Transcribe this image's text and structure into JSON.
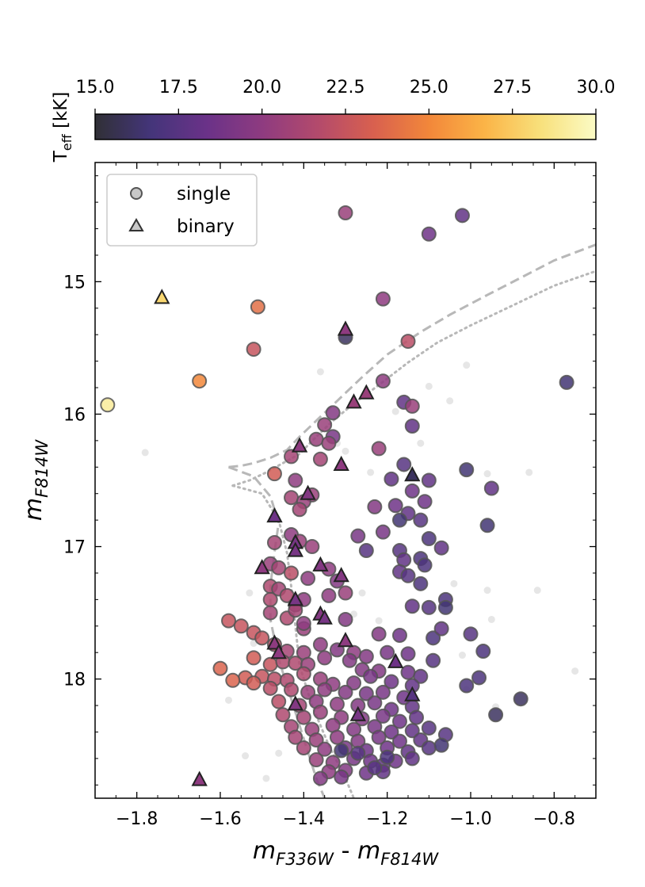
{
  "chart_data": {
    "type": "scatter",
    "xlabel": {
      "base1": "m",
      "sub1": "F336W",
      "sep": " - ",
      "base2": "m",
      "sub2": "F814W"
    },
    "ylabel": {
      "base": "m",
      "sub": "F814W"
    },
    "xlim": [
      -1.9,
      -0.7
    ],
    "ylim": [
      18.9,
      14.1
    ],
    "y_inverted": true,
    "x_ticks": [
      -1.8,
      -1.6,
      -1.4,
      -1.2,
      -1.0,
      -0.8
    ],
    "x_tick_labels": [
      "−1.8",
      "−1.6",
      "−1.4",
      "−1.2",
      "−1.0",
      "−0.8"
    ],
    "y_ticks": [
      15,
      16,
      17,
      18
    ],
    "y_tick_labels": [
      "15",
      "16",
      "17",
      "18"
    ],
    "colorbar": {
      "label": {
        "base": "T",
        "sub": "eff",
        "unit": " [kK]"
      },
      "range": [
        15.0,
        30.0
      ],
      "ticks": [
        15.0,
        17.5,
        20.0,
        22.5,
        25.0,
        27.5,
        30.0
      ],
      "tick_labels": [
        "15.0",
        "17.5",
        "20.0",
        "22.5",
        "25.0",
        "27.5",
        "30.0"
      ],
      "colormap": "inferno-like",
      "stops": [
        "#303036",
        "#44357a",
        "#6a3288",
        "#8e3b80",
        "#b34a6c",
        "#d8604f",
        "#f2873a",
        "#fbb447",
        "#f8e07b",
        "#fbfbc5"
      ]
    },
    "legend": {
      "position": "top-left",
      "entries": [
        {
          "label": "single",
          "marker": "circle"
        },
        {
          "label": "binary",
          "marker": "triangle"
        }
      ]
    },
    "isochrone_color": "#b8b8b8",
    "isochrone_dashed": [
      [
        -1.58,
        16.4
      ],
      [
        -1.55,
        16.39
      ],
      [
        -1.52,
        16.37
      ],
      [
        -1.48,
        16.33
      ],
      [
        -1.44,
        16.27
      ],
      [
        -1.41,
        16.17
      ],
      [
        -1.37,
        16.05
      ],
      [
        -1.32,
        15.9
      ],
      [
        -1.26,
        15.72
      ],
      [
        -1.2,
        15.55
      ],
      [
        -1.12,
        15.38
      ],
      [
        -1.05,
        15.25
      ],
      [
        -0.96,
        15.1
      ],
      [
        -0.88,
        14.97
      ],
      [
        -0.8,
        14.84
      ],
      [
        -0.7,
        14.72
      ]
    ],
    "isochrone_dotted": [
      [
        -1.57,
        16.54
      ],
      [
        -1.53,
        16.5
      ],
      [
        -1.49,
        16.44
      ],
      [
        -1.45,
        16.37
      ],
      [
        -1.41,
        16.3
      ],
      [
        -1.37,
        16.17
      ],
      [
        -1.33,
        16.05
      ],
      [
        -1.28,
        15.92
      ],
      [
        -1.22,
        15.78
      ],
      [
        -1.15,
        15.61
      ],
      [
        -1.08,
        15.46
      ],
      [
        -1.0,
        15.33
      ],
      [
        -0.9,
        15.18
      ],
      [
        -0.8,
        15.03
      ],
      [
        -0.7,
        14.92
      ]
    ],
    "zams_dashed": [
      [
        -1.58,
        16.4
      ],
      [
        -1.52,
        16.47
      ],
      [
        -1.48,
        16.62
      ],
      [
        -1.46,
        16.82
      ],
      [
        -1.47,
        17.04
      ],
      [
        -1.48,
        17.3
      ],
      [
        -1.48,
        17.55
      ],
      [
        -1.46,
        17.85
      ],
      [
        -1.43,
        18.15
      ],
      [
        -1.4,
        18.45
      ],
      [
        -1.37,
        18.75
      ],
      [
        -1.35,
        18.9
      ]
    ],
    "zams_dotted": [
      [
        -1.57,
        16.54
      ],
      [
        -1.5,
        16.6
      ],
      [
        -1.46,
        16.8
      ],
      [
        -1.44,
        17.05
      ],
      [
        -1.43,
        17.3
      ],
      [
        -1.42,
        17.6
      ],
      [
        -1.41,
        17.9
      ],
      [
        -1.38,
        18.2
      ],
      [
        -1.34,
        18.5
      ],
      [
        -1.3,
        18.75
      ],
      [
        -1.28,
        18.9
      ]
    ],
    "background_points": [
      [
        -1.78,
        16.29
      ],
      [
        -1.36,
        15.68
      ],
      [
        -1.32,
        16.22
      ],
      [
        -1.3,
        16.28
      ],
      [
        -1.24,
        16.44
      ],
      [
        -1.18,
        15.98
      ],
      [
        -1.1,
        15.79
      ],
      [
        -1.12,
        16.22
      ],
      [
        -1.05,
        15.9
      ],
      [
        -1.01,
        15.63
      ],
      [
        -0.96,
        16.45
      ],
      [
        -0.86,
        16.44
      ],
      [
        -0.84,
        17.33
      ],
      [
        -0.96,
        17.33
      ],
      [
        -1.04,
        17.28
      ],
      [
        -0.95,
        17.55
      ],
      [
        -1.26,
        17.35
      ],
      [
        -1.28,
        17.51
      ],
      [
        -1.28,
        17.84
      ],
      [
        -1.32,
        17.76
      ],
      [
        -1.22,
        17.56
      ],
      [
        -1.53,
        17.35
      ],
      [
        -1.52,
        17.73
      ],
      [
        -1.58,
        18.16
      ],
      [
        -1.54,
        18.58
      ],
      [
        -1.46,
        18.56
      ],
      [
        -1.49,
        18.75
      ],
      [
        -1.2,
        18.05
      ],
      [
        -1.08,
        18.52
      ],
      [
        -0.94,
        18.21
      ],
      [
        -0.75,
        17.94
      ],
      [
        -1.02,
        17.82
      ],
      [
        -1.01,
        18.08
      ]
    ],
    "single": [
      [
        -1.3,
        14.48,
        20.5
      ],
      [
        -1.02,
        14.5,
        18.0
      ],
      [
        -1.1,
        14.64,
        18.5
      ],
      [
        -1.21,
        15.13,
        20.0
      ],
      [
        -1.51,
        15.19,
        24.0
      ],
      [
        -1.52,
        15.51,
        22.5
      ],
      [
        -1.3,
        15.42,
        16.0
      ],
      [
        -1.15,
        15.45,
        22.0
      ],
      [
        -1.65,
        15.75,
        25.0
      ],
      [
        -1.87,
        15.93,
        29.0
      ],
      [
        -1.21,
        15.75,
        20.0
      ],
      [
        -0.77,
        15.76,
        16.5
      ],
      [
        -1.16,
        15.91,
        18.0
      ],
      [
        -1.14,
        15.94,
        20.5
      ],
      [
        -1.33,
        15.99,
        19.5
      ],
      [
        -1.35,
        16.08,
        20.5
      ],
      [
        -1.33,
        16.17,
        19.0
      ],
      [
        -1.14,
        16.09,
        18.0
      ],
      [
        -1.37,
        16.19,
        20.5
      ],
      [
        -1.34,
        16.22,
        20.5
      ],
      [
        -1.22,
        16.26,
        20.5
      ],
      [
        -1.01,
        16.42,
        16.5
      ],
      [
        -1.43,
        16.32,
        21.0
      ],
      [
        -1.36,
        16.34,
        21.0
      ],
      [
        -1.47,
        16.45,
        23.0
      ],
      [
        -1.42,
        16.5,
        20.0
      ],
      [
        -1.19,
        16.49,
        18.0
      ],
      [
        -1.16,
        16.38,
        17.5
      ],
      [
        -1.1,
        16.5,
        18.0
      ],
      [
        -0.95,
        16.56,
        18.0
      ],
      [
        -1.43,
        16.63,
        21.0
      ],
      [
        -1.38,
        16.61,
        20.5
      ],
      [
        -1.4,
        16.66,
        20.5
      ],
      [
        -1.41,
        16.72,
        21.0
      ],
      [
        -1.23,
        16.7,
        19.5
      ],
      [
        -1.14,
        16.58,
        18.5
      ],
      [
        -1.11,
        16.66,
        18.5
      ],
      [
        -1.18,
        16.69,
        18.5
      ],
      [
        -1.15,
        16.75,
        18.0
      ],
      [
        -1.12,
        16.8,
        17.5
      ],
      [
        -1.17,
        16.8,
        16.5
      ],
      [
        -0.96,
        16.84,
        16.5
      ],
      [
        -1.43,
        16.91,
        20.0
      ],
      [
        -1.41,
        16.96,
        20.5
      ],
      [
        -1.47,
        16.97,
        21.0
      ],
      [
        -1.38,
        17.0,
        20.5
      ],
      [
        -1.27,
        16.92,
        19.0
      ],
      [
        -1.21,
        16.89,
        19.0
      ],
      [
        -1.25,
        17.03,
        17.5
      ],
      [
        -1.1,
        16.94,
        17.0
      ],
      [
        -1.07,
        17.01,
        18.0
      ],
      [
        -1.17,
        17.03,
        17.5
      ],
      [
        -1.12,
        17.09,
        17.0
      ],
      [
        -1.16,
        17.1,
        18.0
      ],
      [
        -1.48,
        17.13,
        20.5
      ],
      [
        -1.46,
        17.16,
        21.0
      ],
      [
        -1.43,
        17.2,
        22.0
      ],
      [
        -1.39,
        17.24,
        20.0
      ],
      [
        -1.34,
        17.17,
        20.0
      ],
      [
        -1.32,
        17.26,
        19.5
      ],
      [
        -1.17,
        17.19,
        18.0
      ],
      [
        -1.11,
        17.14,
        17.0
      ],
      [
        -1.15,
        17.22,
        17.5
      ],
      [
        -1.12,
        17.28,
        17.0
      ],
      [
        -1.48,
        17.3,
        21.5
      ],
      [
        -1.46,
        17.32,
        21.0
      ],
      [
        -1.44,
        17.37,
        21.5
      ],
      [
        -1.48,
        17.4,
        21.5
      ],
      [
        -1.42,
        17.44,
        20.5
      ],
      [
        -1.4,
        17.4,
        20.0
      ],
      [
        -1.34,
        17.37,
        20.0
      ],
      [
        -1.3,
        17.35,
        20.5
      ],
      [
        -1.06,
        17.4,
        17.0
      ],
      [
        -1.06,
        17.46,
        16.5
      ],
      [
        -1.1,
        17.46,
        17.5
      ],
      [
        -1.14,
        17.45,
        18.0
      ],
      [
        -1.58,
        17.56,
        22.5
      ],
      [
        -1.48,
        17.5,
        21.0
      ],
      [
        -1.44,
        17.54,
        21.5
      ],
      [
        -1.42,
        17.48,
        21.0
      ],
      [
        -1.4,
        17.62,
        20.5
      ],
      [
        -1.4,
        17.58,
        20.0
      ],
      [
        -1.3,
        17.55,
        19.5
      ],
      [
        -1.22,
        17.66,
        19.5
      ],
      [
        -1.17,
        17.67,
        18.5
      ],
      [
        -1.09,
        17.69,
        17.0
      ],
      [
        -1.07,
        17.62,
        18.0
      ],
      [
        -1.0,
        17.66,
        17.5
      ],
      [
        -1.55,
        17.6,
        22.5
      ],
      [
        -1.52,
        17.65,
        22.5
      ],
      [
        -1.5,
        17.69,
        22.5
      ],
      [
        -1.47,
        17.74,
        22.0
      ],
      [
        -1.44,
        17.79,
        21.0
      ],
      [
        -1.4,
        17.8,
        20.5
      ],
      [
        -1.36,
        17.74,
        20.0
      ],
      [
        -1.32,
        17.78,
        19.5
      ],
      [
        -1.28,
        17.8,
        20.0
      ],
      [
        -1.25,
        17.83,
        19.5
      ],
      [
        -1.2,
        17.8,
        19.0
      ],
      [
        -1.15,
        17.81,
        18.5
      ],
      [
        -1.09,
        17.86,
        17.5
      ],
      [
        -0.97,
        17.79,
        17.0
      ],
      [
        -1.52,
        17.84,
        23.0
      ],
      [
        -1.48,
        17.89,
        22.5
      ],
      [
        -1.45,
        17.87,
        21.5
      ],
      [
        -1.42,
        17.88,
        21.5
      ],
      [
        -1.39,
        17.89,
        20.5
      ],
      [
        -1.35,
        17.84,
        20.0
      ],
      [
        -1.29,
        17.86,
        19.5
      ],
      [
        -1.26,
        17.93,
        19.5
      ],
      [
        -1.22,
        17.94,
        19.5
      ],
      [
        -1.15,
        17.95,
        18.5
      ],
      [
        -1.12,
        17.98,
        18.0
      ],
      [
        -1.6,
        17.92,
        23.5
      ],
      [
        -1.54,
        17.99,
        23.0
      ],
      [
        -1.5,
        17.98,
        22.5
      ],
      [
        -1.47,
        18.0,
        22.0
      ],
      [
        -1.44,
        18.01,
        21.5
      ],
      [
        -1.4,
        17.96,
        21.5
      ],
      [
        -1.36,
        18.0,
        20.5
      ],
      [
        -1.33,
        18.04,
        20.0
      ],
      [
        -1.28,
        18.03,
        19.5
      ],
      [
        -1.24,
        17.98,
        19.0
      ],
      [
        -1.19,
        18.02,
        18.5
      ],
      [
        -1.14,
        18.05,
        18.0
      ],
      [
        -0.98,
        17.99,
        17.0
      ],
      [
        -1.01,
        18.05,
        17.0
      ],
      [
        -1.57,
        18.01,
        23.5
      ],
      [
        -1.52,
        18.03,
        23.0
      ],
      [
        -1.48,
        18.07,
        22.0
      ],
      [
        -1.43,
        18.08,
        21.5
      ],
      [
        -1.39,
        18.1,
        20.5
      ],
      [
        -1.35,
        18.08,
        20.0
      ],
      [
        -1.3,
        18.1,
        19.5
      ],
      [
        -1.25,
        18.11,
        19.0
      ],
      [
        -1.21,
        18.1,
        19.0
      ],
      [
        -1.16,
        18.14,
        18.5
      ],
      [
        -0.88,
        18.15,
        16.0
      ],
      [
        -1.46,
        18.17,
        22.0
      ],
      [
        -1.41,
        18.2,
        21.0
      ],
      [
        -1.37,
        18.17,
        20.0
      ],
      [
        -1.32,
        18.19,
        20.0
      ],
      [
        -1.27,
        18.2,
        19.5
      ],
      [
        -1.23,
        18.18,
        19.0
      ],
      [
        -1.19,
        18.23,
        18.5
      ],
      [
        -1.14,
        18.21,
        18.0
      ],
      [
        -0.94,
        18.27,
        16.0
      ],
      [
        -1.45,
        18.27,
        21.5
      ],
      [
        -1.4,
        18.29,
        21.0
      ],
      [
        -1.36,
        18.25,
        20.5
      ],
      [
        -1.31,
        18.29,
        20.0
      ],
      [
        -1.26,
        18.3,
        19.5
      ],
      [
        -1.21,
        18.28,
        19.0
      ],
      [
        -1.17,
        18.32,
        18.5
      ],
      [
        -1.13,
        18.29,
        18.0
      ],
      [
        -1.43,
        18.36,
        21.0
      ],
      [
        -1.38,
        18.38,
        20.5
      ],
      [
        -1.33,
        18.35,
        20.0
      ],
      [
        -1.28,
        18.38,
        19.5
      ],
      [
        -1.23,
        18.36,
        19.0
      ],
      [
        -1.19,
        18.4,
        18.5
      ],
      [
        -1.14,
        18.39,
        18.0
      ],
      [
        -1.1,
        18.37,
        17.5
      ],
      [
        -1.42,
        18.44,
        21.0
      ],
      [
        -1.37,
        18.46,
        20.5
      ],
      [
        -1.32,
        18.44,
        20.0
      ],
      [
        -1.27,
        18.47,
        19.5
      ],
      [
        -1.22,
        18.44,
        19.0
      ],
      [
        -1.17,
        18.47,
        18.5
      ],
      [
        -1.12,
        18.46,
        18.0
      ],
      [
        -1.06,
        18.42,
        17.5
      ],
      [
        -1.4,
        18.52,
        21.0
      ],
      [
        -1.35,
        18.53,
        20.0
      ],
      [
        -1.3,
        18.52,
        19.0
      ],
      [
        -1.25,
        18.54,
        18.5
      ],
      [
        -1.2,
        18.52,
        18.5
      ],
      [
        -1.15,
        18.55,
        18.0
      ],
      [
        -1.1,
        18.52,
        17.5
      ],
      [
        -1.07,
        18.5,
        16.5
      ],
      [
        -1.37,
        18.61,
        20.5
      ],
      [
        -1.33,
        18.63,
        20.0
      ],
      [
        -1.28,
        18.6,
        19.0
      ],
      [
        -1.24,
        18.62,
        18.5
      ],
      [
        -1.21,
        18.65,
        18.0
      ],
      [
        -1.18,
        18.62,
        18.5
      ],
      [
        -1.14,
        18.6,
        18.0
      ],
      [
        -1.34,
        18.7,
        20.0
      ],
      [
        -1.3,
        18.69,
        19.5
      ],
      [
        -1.25,
        18.71,
        18.5
      ],
      [
        -1.21,
        18.7,
        18.0
      ],
      [
        -1.36,
        18.75,
        19.5
      ],
      [
        -1.31,
        18.74,
        19.0
      ],
      [
        -1.23,
        18.67,
        17.5
      ],
      [
        -1.27,
        18.56,
        17.5
      ],
      [
        -1.31,
        18.54,
        16.5
      ],
      [
        -1.2,
        18.59,
        17.0
      ]
    ],
    "binary": [
      [
        -1.74,
        15.12,
        28.0
      ],
      [
        -1.3,
        15.36,
        20.0
      ],
      [
        -1.25,
        15.84,
        20.5
      ],
      [
        -1.28,
        15.91,
        20.5
      ],
      [
        -1.41,
        16.24,
        20.0
      ],
      [
        -1.31,
        16.38,
        20.0
      ],
      [
        -1.14,
        16.46,
        16.0
      ],
      [
        -1.39,
        16.6,
        19.5
      ],
      [
        -1.47,
        16.77,
        18.5
      ],
      [
        -1.42,
        16.97,
        19.0
      ],
      [
        -1.42,
        17.03,
        19.0
      ],
      [
        -1.5,
        17.16,
        20.0
      ],
      [
        -1.36,
        17.14,
        19.5
      ],
      [
        -1.31,
        17.22,
        19.5
      ],
      [
        -1.42,
        17.4,
        19.0
      ],
      [
        -1.36,
        17.51,
        19.5
      ],
      [
        -1.35,
        17.54,
        19.0
      ],
      [
        -1.3,
        17.71,
        20.0
      ],
      [
        -1.47,
        17.73,
        20.0
      ],
      [
        -1.46,
        17.8,
        20.0
      ],
      [
        -1.18,
        17.87,
        18.5
      ],
      [
        -1.14,
        18.12,
        17.5
      ],
      [
        -1.42,
        18.19,
        19.5
      ],
      [
        -1.27,
        18.27,
        19.0
      ],
      [
        -1.65,
        18.76,
        20.0
      ]
    ]
  }
}
